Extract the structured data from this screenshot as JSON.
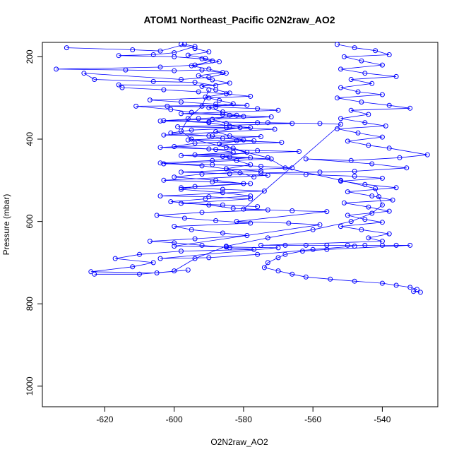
{
  "chart_data": {
    "type": "scatter",
    "title": "ATOM1 Northeast_Pacific O2N2raw_AO2",
    "xlabel": "O2N2raw_AO2",
    "ylabel": "Pressure (mbar)",
    "xlim": [
      -638,
      -524
    ],
    "ylim": [
      1050,
      165
    ],
    "y_inverted": true,
    "x_ticks": [
      -620,
      -600,
      -580,
      -560,
      -540
    ],
    "y_ticks": [
      200,
      400,
      600,
      800,
      1000
    ],
    "grid": false,
    "legend": "none",
    "series_color": "#0000ff",
    "marker": "open-circle",
    "connected": true,
    "series": [
      {
        "points": [
          [
            -631,
            178
          ],
          [
            -612,
            183
          ],
          [
            -604,
            186
          ],
          [
            -597,
            170
          ],
          [
            -594,
            175
          ],
          [
            -600,
            190
          ],
          [
            -606,
            195
          ],
          [
            -616,
            197
          ],
          [
            -600,
            200
          ],
          [
            -592,
            205
          ],
          [
            -589,
            210
          ],
          [
            -594,
            220
          ],
          [
            -604,
            225
          ],
          [
            -634,
            230
          ],
          [
            -614,
            232
          ],
          [
            -600,
            234
          ],
          [
            -592,
            232
          ],
          [
            -585,
            240
          ],
          [
            -590,
            250
          ],
          [
            -598,
            255
          ],
          [
            -626,
            240
          ],
          [
            -623,
            255
          ],
          [
            -606,
            260
          ],
          [
            -594,
            262
          ],
          [
            -588,
            270
          ],
          [
            -616,
            268
          ],
          [
            -615,
            275
          ],
          [
            -603,
            280
          ],
          [
            -593,
            285
          ],
          [
            -585,
            290
          ],
          [
            -578,
            296
          ],
          [
            -590,
            300
          ],
          [
            -607,
            305
          ],
          [
            -598,
            310
          ],
          [
            -588,
            315
          ],
          [
            -579,
            318
          ],
          [
            -611,
            320
          ],
          [
            -601,
            328
          ],
          [
            -595,
            335
          ],
          [
            -586,
            340
          ],
          [
            -580,
            345
          ],
          [
            -593,
            350
          ],
          [
            -603,
            355
          ],
          [
            -590,
            360
          ],
          [
            -584,
            368
          ],
          [
            -578,
            372
          ],
          [
            -595,
            378
          ],
          [
            -601,
            385
          ],
          [
            -590,
            392
          ],
          [
            -586,
            398
          ],
          [
            -577,
            404
          ],
          [
            -594,
            410
          ],
          [
            -600,
            418
          ],
          [
            -588,
            425
          ],
          [
            -583,
            432
          ],
          [
            -594,
            438
          ],
          [
            -578,
            445
          ],
          [
            -589,
            452
          ],
          [
            -604,
            458
          ],
          [
            -592,
            465
          ],
          [
            -585,
            472
          ],
          [
            -575,
            478
          ],
          [
            -592,
            485
          ],
          [
            -600,
            492
          ],
          [
            -588,
            500
          ],
          [
            -580,
            508
          ],
          [
            -594,
            515
          ],
          [
            -598,
            522
          ],
          [
            -586,
            530
          ],
          [
            -578,
            538
          ],
          [
            -591,
            545
          ],
          [
            -601,
            552
          ],
          [
            -590,
            560
          ],
          [
            -583,
            568
          ],
          [
            -573,
            572
          ],
          [
            -592,
            578
          ],
          [
            -605,
            585
          ],
          [
            -597,
            592
          ],
          [
            -588,
            598
          ],
          [
            -578,
            604
          ],
          [
            -600,
            612
          ],
          [
            -595,
            620
          ],
          [
            -586,
            628
          ],
          [
            -579,
            634
          ],
          [
            -594,
            642
          ],
          [
            -607,
            648
          ],
          [
            -600,
            652
          ],
          [
            -592,
            658
          ],
          [
            -584,
            664
          ],
          [
            -577,
            668
          ],
          [
            -598,
            672
          ],
          [
            -610,
            680
          ],
          [
            -617,
            690
          ],
          [
            -606,
            700
          ],
          [
            -612,
            710
          ],
          [
            -624,
            722
          ],
          [
            -605,
            725
          ],
          [
            -596,
            718
          ],
          [
            -610,
            728
          ],
          [
            -623,
            728
          ]
        ]
      },
      {
        "points": [
          [
            -553,
            170
          ],
          [
            -548,
            178
          ],
          [
            -542,
            185
          ],
          [
            -538,
            195
          ],
          [
            -551,
            200
          ],
          [
            -546,
            210
          ],
          [
            -540,
            220
          ],
          [
            -552,
            230
          ],
          [
            -545,
            240
          ],
          [
            -536,
            248
          ],
          [
            -549,
            255
          ],
          [
            -543,
            265
          ],
          [
            -552,
            275
          ],
          [
            -547,
            285
          ],
          [
            -540,
            292
          ],
          [
            -553,
            300
          ],
          [
            -546,
            310
          ],
          [
            -538,
            318
          ],
          [
            -532,
            325
          ],
          [
            -549,
            330
          ],
          [
            -544,
            340
          ],
          [
            -552,
            350
          ],
          [
            -545,
            360
          ],
          [
            -539,
            368
          ],
          [
            -553,
            375
          ],
          [
            -547,
            385
          ],
          [
            -540,
            395
          ],
          [
            -550,
            405
          ],
          [
            -544,
            415
          ],
          [
            -538,
            422
          ],
          [
            -527,
            438
          ],
          [
            -535,
            445
          ],
          [
            -549,
            452
          ],
          [
            -562,
            448
          ],
          [
            -543,
            460
          ],
          [
            -533,
            470
          ],
          [
            -548,
            478
          ],
          [
            -558,
            480
          ],
          [
            -575,
            482
          ],
          [
            -562,
            486
          ],
          [
            -548,
            490
          ],
          [
            -540,
            495
          ],
          [
            -552,
            502
          ],
          [
            -545,
            510
          ],
          [
            -536,
            518
          ],
          [
            -550,
            528
          ],
          [
            -543,
            538
          ],
          [
            -537,
            548
          ],
          [
            -551,
            555
          ],
          [
            -544,
            565
          ],
          [
            -538,
            575
          ],
          [
            -550,
            585
          ],
          [
            -545,
            595
          ],
          [
            -540,
            602
          ],
          [
            -552,
            612
          ],
          [
            -546,
            620
          ],
          [
            -538,
            630
          ],
          [
            -544,
            640
          ],
          [
            -540,
            648
          ],
          [
            -575,
            658
          ],
          [
            -568,
            658
          ],
          [
            -562,
            658
          ],
          [
            -556,
            658
          ],
          [
            -550,
            658
          ],
          [
            -545,
            658
          ],
          [
            -540,
            658
          ],
          [
            -536,
            658
          ],
          [
            -532,
            658
          ],
          [
            -556,
            668
          ],
          [
            -563,
            672
          ],
          [
            -568,
            680
          ],
          [
            -570,
            688
          ],
          [
            -573,
            700
          ],
          [
            -574,
            712
          ],
          [
            -570,
            720
          ],
          [
            -566,
            728
          ],
          [
            -562,
            735
          ],
          [
            -555,
            740
          ],
          [
            -548,
            745
          ],
          [
            -540,
            750
          ],
          [
            -536,
            755
          ],
          [
            -532,
            760
          ],
          [
            -530,
            765
          ],
          [
            -531,
            770
          ],
          [
            -529,
            772
          ]
        ]
      },
      {
        "points": [
          [
            -600,
            720
          ],
          [
            -594,
            690
          ],
          [
            -585,
            660
          ],
          [
            -573,
            640
          ],
          [
            -560,
            620
          ],
          [
            -549,
            600
          ],
          [
            -543,
            580
          ],
          [
            -540,
            560
          ],
          [
            -541,
            540
          ],
          [
            -542,
            520
          ],
          [
            -552,
            500
          ],
          [
            -568,
            470
          ],
          [
            -573,
            445
          ],
          [
            -585,
            420
          ],
          [
            -595,
            400
          ],
          [
            -598,
            380
          ],
          [
            -596,
            350
          ],
          [
            -592,
            320
          ],
          [
            -590,
            280
          ]
        ]
      },
      {
        "points": [
          [
            -602,
            320
          ],
          [
            -588,
            322
          ],
          [
            -576,
            326
          ],
          [
            -570,
            330
          ],
          [
            -598,
            338
          ],
          [
            -584,
            342
          ],
          [
            -572,
            346
          ],
          [
            -604,
            356
          ],
          [
            -590,
            358
          ],
          [
            -576,
            360
          ],
          [
            -566,
            362
          ],
          [
            -599,
            370
          ],
          [
            -585,
            372
          ],
          [
            -571,
            376
          ],
          [
            -603,
            390
          ],
          [
            -589,
            392
          ],
          [
            -575,
            394
          ],
          [
            -596,
            402
          ],
          [
            -582,
            404
          ],
          [
            -569,
            408
          ],
          [
            -604,
            420
          ],
          [
            -590,
            424
          ],
          [
            -576,
            428
          ],
          [
            -564,
            430
          ],
          [
            -598,
            440
          ],
          [
            -584,
            444
          ],
          [
            -572,
            448
          ],
          [
            -603,
            460
          ],
          [
            -589,
            462
          ],
          [
            -575,
            466
          ],
          [
            -566,
            470
          ],
          [
            -598,
            480
          ],
          [
            -584,
            484
          ],
          [
            -573,
            488
          ],
          [
            -603,
            500
          ],
          [
            -589,
            504
          ],
          [
            -578,
            508
          ],
          [
            -598,
            518
          ],
          [
            -586,
            522
          ],
          [
            -574,
            526
          ],
          [
            -604,
            538
          ],
          [
            -590,
            540
          ],
          [
            -578,
            545
          ],
          [
            -598,
            556
          ],
          [
            -586,
            560
          ],
          [
            -576,
            564
          ]
        ]
      },
      {
        "points": [
          [
            -598,
            170
          ],
          [
            -594,
            180
          ],
          [
            -590,
            188
          ],
          [
            -596,
            196
          ],
          [
            -591,
            204
          ],
          [
            -587,
            212
          ],
          [
            -595,
            222
          ],
          [
            -590,
            230
          ],
          [
            -586,
            238
          ],
          [
            -593,
            246
          ],
          [
            -589,
            256
          ],
          [
            -584,
            264
          ],
          [
            -592,
            272
          ],
          [
            -588,
            280
          ],
          [
            -584,
            288
          ],
          [
            -591,
            298
          ],
          [
            -587,
            306
          ],
          [
            -583,
            314
          ],
          [
            -590,
            324
          ],
          [
            -586,
            334
          ],
          [
            -582,
            342
          ],
          [
            -589,
            352
          ],
          [
            -585,
            362
          ],
          [
            -581,
            372
          ],
          [
            -588,
            382
          ],
          [
            -584,
            392
          ],
          [
            -580,
            402
          ],
          [
            -587,
            412
          ],
          [
            -583,
            422
          ],
          [
            -579,
            432
          ],
          [
            -586,
            442
          ],
          [
            -582,
            452
          ],
          [
            -578,
            462
          ],
          [
            -585,
            472
          ],
          [
            -581,
            482
          ],
          [
            -577,
            492
          ]
        ]
      },
      {
        "points": [
          [
            -573,
            360
          ],
          [
            -558,
            362
          ],
          [
            -552,
            364
          ],
          [
            -580,
            570
          ],
          [
            -566,
            574
          ],
          [
            -556,
            576
          ],
          [
            -582,
            600
          ],
          [
            -567,
            604
          ],
          [
            -558,
            608
          ],
          [
            -600,
            660
          ],
          [
            -585,
            662
          ],
          [
            -570,
            664
          ],
          [
            -604,
            690
          ],
          [
            -590,
            688
          ],
          [
            -576,
            680
          ],
          [
            -560,
            668
          ],
          [
            -548,
            660
          ]
        ]
      }
    ]
  }
}
